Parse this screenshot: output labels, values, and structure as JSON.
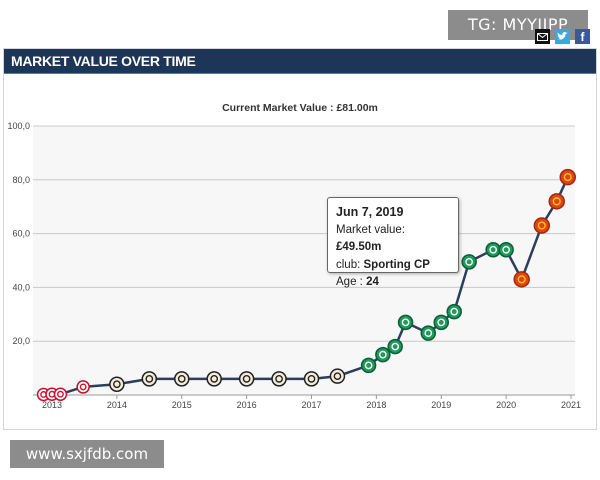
{
  "watermarks": {
    "top": "TG: MYYJJPP",
    "bottom": "www.sxjfdb.com"
  },
  "panel": {
    "title": "MARKET VALUE OVER TIME"
  },
  "share_icons": [
    "mail-icon",
    "twitter-icon",
    "facebook-icon"
  ],
  "colors": {
    "header": "#1d3557",
    "line": "#2c3e5c",
    "grid": "#c8c8c8"
  },
  "tooltip": {
    "date": "Jun 7, 2019",
    "market_value_label": "Market value:",
    "market_value": "£49.50m",
    "club_label": "club:",
    "club": "Sporting CP",
    "age_label": "Age :",
    "age": "24"
  },
  "chart_data": {
    "type": "line",
    "title": "Current Market Value : £81.00m",
    "xlabel": "",
    "ylabel": "",
    "xlim": [
      2013,
      2021
    ],
    "ylim": [
      0,
      100
    ],
    "grid": true,
    "x_ticks": [
      "2013",
      "2014",
      "2015",
      "2016",
      "2017",
      "2018",
      "2019",
      "2020",
      "2021"
    ],
    "y_ticks": [
      {
        "value": 20,
        "label": "20,0"
      },
      {
        "value": 40,
        "label": "40,0"
      },
      {
        "value": 60,
        "label": "60,0"
      },
      {
        "value": 80,
        "label": "80,0"
      },
      {
        "value": 100,
        "label": "100,0"
      }
    ],
    "series": [
      {
        "points": [
          {
            "x": 2012.87,
            "y": 0.2,
            "club": "red-white"
          },
          {
            "x": 2013.0,
            "y": 0.3,
            "club": "red-white"
          },
          {
            "x": 2013.13,
            "y": 0.3,
            "club": "red-white"
          },
          {
            "x": 2013.48,
            "y": 3.0,
            "club": "red-white"
          },
          {
            "x": 2014.0,
            "y": 4.0,
            "club": "black-white"
          },
          {
            "x": 2014.5,
            "y": 6.0,
            "club": "black-white"
          },
          {
            "x": 2015.0,
            "y": 6.0,
            "club": "black-white"
          },
          {
            "x": 2015.5,
            "y": 6.0,
            "club": "black-white"
          },
          {
            "x": 2016.0,
            "y": 6.0,
            "club": "black-white"
          },
          {
            "x": 2016.5,
            "y": 6.0,
            "club": "black-white"
          },
          {
            "x": 2017.0,
            "y": 6.0,
            "club": "black-white"
          },
          {
            "x": 2017.4,
            "y": 7.0,
            "club": "black-white"
          },
          {
            "x": 2017.88,
            "y": 11.0,
            "club": "green-white"
          },
          {
            "x": 2018.1,
            "y": 15.0,
            "club": "green-white"
          },
          {
            "x": 2018.29,
            "y": 18.0,
            "club": "green-white"
          },
          {
            "x": 2018.45,
            "y": 27.0,
            "club": "green-white"
          },
          {
            "x": 2018.8,
            "y": 23.0,
            "club": "green-white"
          },
          {
            "x": 2019.0,
            "y": 27.0,
            "club": "green-white"
          },
          {
            "x": 2019.2,
            "y": 31.0,
            "club": "green-white"
          },
          {
            "x": 2019.43,
            "y": 49.5,
            "club": "green-white"
          },
          {
            "x": 2019.8,
            "y": 54.0,
            "club": "green-white"
          },
          {
            "x": 2020.0,
            "y": 54.0,
            "club": "green-white"
          },
          {
            "x": 2020.24,
            "y": 43.0,
            "club": "red-orange"
          },
          {
            "x": 2020.55,
            "y": 63.0,
            "club": "red-orange"
          },
          {
            "x": 2020.78,
            "y": 72.0,
            "club": "red-orange"
          },
          {
            "x": 2020.95,
            "y": 81.0,
            "club": "red-orange"
          }
        ]
      }
    ]
  }
}
